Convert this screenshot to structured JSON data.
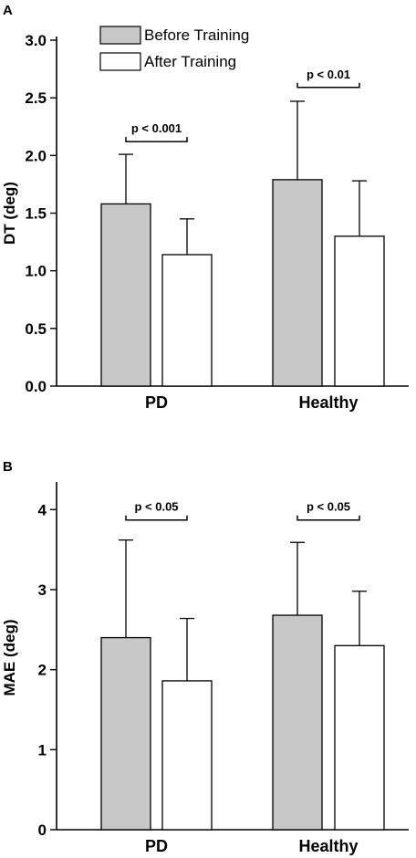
{
  "chart_data": [
    {
      "panel": "A",
      "type": "bar",
      "categories": [
        "PD",
        "Healthy"
      ],
      "ylabel": "DT (deg)",
      "ylim": [
        0,
        3.0
      ],
      "yticks": [
        0.0,
        0.5,
        1.0,
        1.5,
        2.0,
        2.5,
        3.0
      ],
      "ytick_labels": [
        "0.0",
        "0.5",
        "1.0",
        "1.5",
        "2.0",
        "2.5",
        "3.0"
      ],
      "legend": {
        "placement": "top-left"
      },
      "series": [
        {
          "name": "Before Training",
          "color": "#c8c8c8",
          "values": [
            1.58,
            1.79
          ],
          "errors": [
            0.43,
            0.68
          ]
        },
        {
          "name": "After Training",
          "color": "#ffffff",
          "values": [
            1.14,
            1.3
          ],
          "errors": [
            0.31,
            0.48
          ]
        }
      ],
      "annotations": [
        {
          "category": "PD",
          "text": "p < 0.001",
          "bracket_y": 2.12
        },
        {
          "category": "Healthy",
          "text": "p < 0.01",
          "bracket_y": 2.59
        }
      ]
    },
    {
      "panel": "B",
      "type": "bar",
      "categories": [
        "PD",
        "Healthy"
      ],
      "ylabel": "MAE (deg)",
      "ylim": [
        0,
        4.3
      ],
      "yticks": [
        0,
        1,
        2,
        3,
        4
      ],
      "ytick_labels": [
        "0",
        "1",
        "2",
        "3",
        "4"
      ],
      "series": [
        {
          "name": "Before Training",
          "color": "#c8c8c8",
          "values": [
            2.4,
            2.68
          ],
          "errors": [
            1.22,
            0.91
          ]
        },
        {
          "name": "After Training",
          "color": "#ffffff",
          "values": [
            1.86,
            2.3
          ],
          "errors": [
            0.78,
            0.68
          ]
        }
      ],
      "annotations": [
        {
          "category": "PD",
          "text": "p < 0.05",
          "bracket_y": 3.87
        },
        {
          "category": "Healthy",
          "text": "p < 0.05",
          "bracket_y": 3.87
        }
      ]
    }
  ]
}
